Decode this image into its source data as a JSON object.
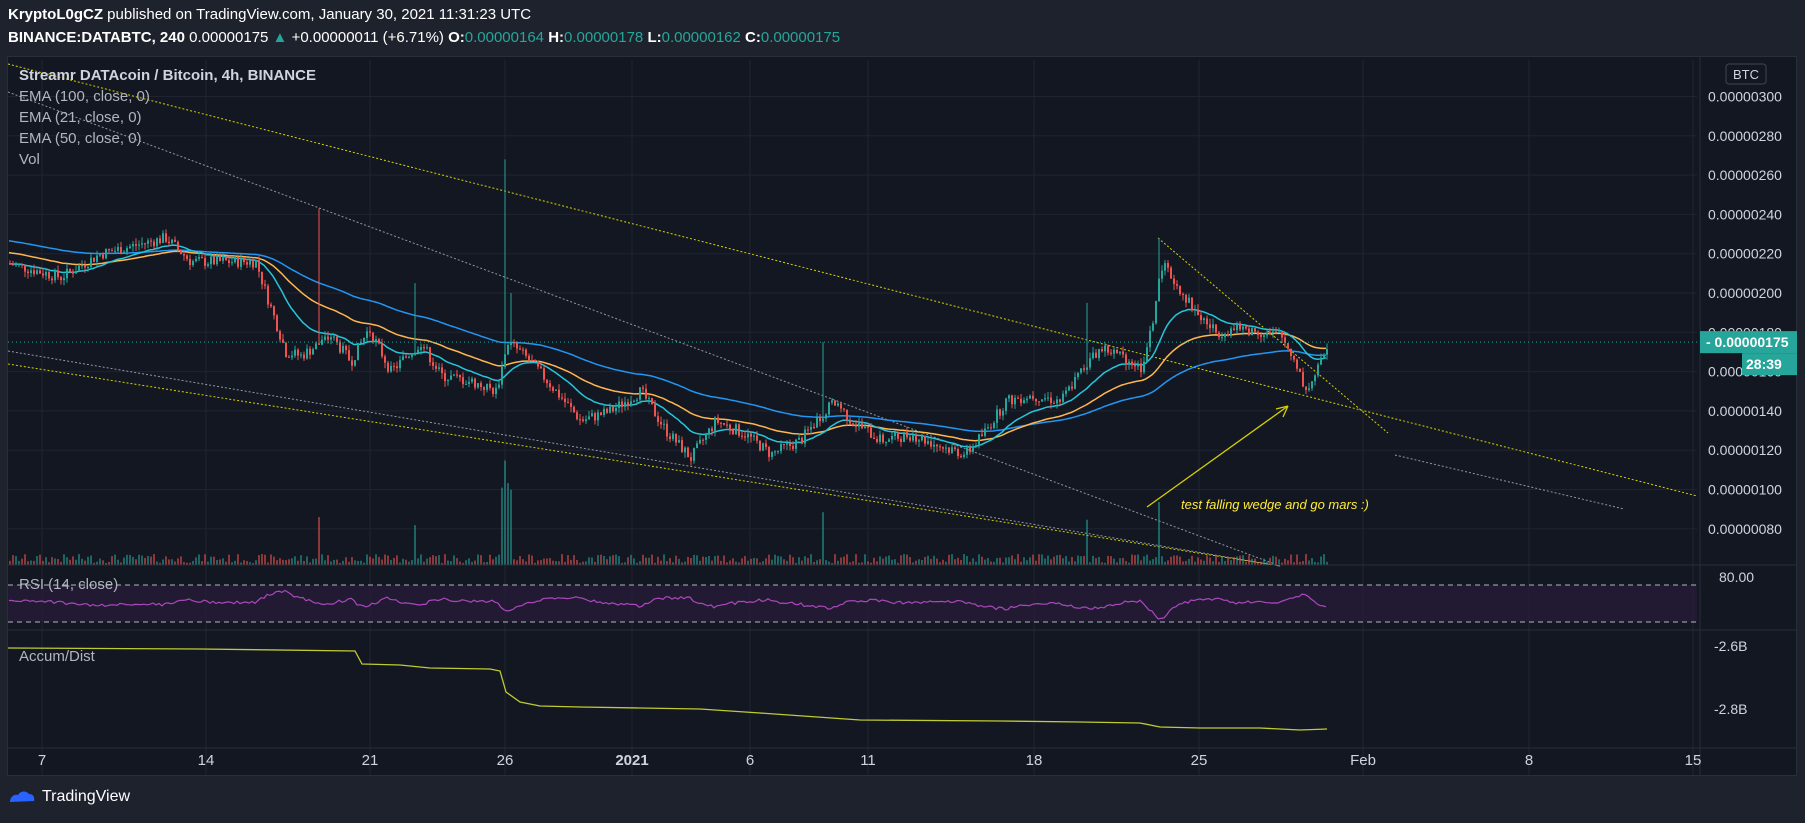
{
  "header": {
    "author": "KryptoL0gCZ",
    "published": "published on TradingView.com, January 30, 2021 11:31:23 UTC",
    "symbol": "BINANCE:DATABTC, 240",
    "last": "0.00000175",
    "change_arrow": "▲",
    "change": "+0.00000011 (+6.71%)",
    "o_label": "O:",
    "o_val": "0.00000164",
    "h_label": "H:",
    "h_val": "0.00000178",
    "l_label": "L:",
    "l_val": "0.00000162",
    "c_label": "C:",
    "c_val": "0.00000175"
  },
  "legend": {
    "title": "Streamr DATAcoin / Bitcoin, 4h, BINANCE",
    "ema100": "EMA (100, close, 0)",
    "ema21": "EMA (21, close, 0)",
    "ema50": "EMA (50, close, 0)",
    "vol": "Vol",
    "rsi": "RSI (14, close)",
    "ad": "Accum/Dist"
  },
  "price_axis": {
    "currency": "BTC",
    "ticks": [
      "0.00000300",
      "0.00000280",
      "0.00000260",
      "0.00000240",
      "0.00000220",
      "0.00000200",
      "0.00000180",
      "0.00000160",
      "0.00000140",
      "0.00000120",
      "0.00000100",
      "0.00000080"
    ],
    "last_price_label": "0.00000175",
    "countdown_label": "28:39"
  },
  "rsi_axis": {
    "ticks": [
      "80.00"
    ]
  },
  "ad_axis": {
    "ticks": [
      "-2.6B",
      "-2.8B"
    ]
  },
  "time_axis": {
    "labels": [
      "7",
      "14",
      "21",
      "26",
      "2021",
      "6",
      "11",
      "18",
      "25",
      "Feb",
      "8",
      "15"
    ]
  },
  "annotation": "test falling wedge and go mars :)",
  "footer": {
    "brand": "TradingView"
  },
  "colors": {
    "up": "#26a69a",
    "down": "#ef5350",
    "ema100": "#2196f3",
    "ema21": "#26c6da",
    "ema50": "#ffb74d",
    "rsi": "#ab47bc",
    "ad": "#c0ca33",
    "trend_yellow": "#d4d000",
    "trend_white": "#b2b5be"
  },
  "chart_data": [
    {
      "type": "candlestick",
      "title": "Streamr DATAcoin / Bitcoin, 4h, BINANCE",
      "ylabel": "BTC",
      "ylim": [
        7e-07,
        3.1e-06
      ],
      "x_labels": [
        "7",
        "14",
        "21",
        "26",
        "2021",
        "6",
        "11",
        "18",
        "25",
        "Feb",
        "8",
        "15"
      ],
      "series_summary": [
        {
          "date": "Dec 7",
          "close": 2.15e-06
        },
        {
          "date": "Dec 12",
          "close": 2.25e-06
        },
        {
          "date": "Dec 16",
          "close": 2.15e-06
        },
        {
          "date": "Dec 18",
          "close": 1.7e-06
        },
        {
          "date": "Dec 21",
          "close": 1.75e-06,
          "high": 2.43e-06
        },
        {
          "date": "Dec 26",
          "close": 1.65e-06,
          "high": 2.68e-06
        },
        {
          "date": "Dec 29",
          "close": 1.4e-06
        },
        {
          "date": "Jan 3",
          "close": 1.15e-06
        },
        {
          "date": "Jan 9",
          "close": 1.4e-06,
          "high": 1.75e-06
        },
        {
          "date": "Jan 15",
          "close": 1.18e-06
        },
        {
          "date": "Jan 20",
          "close": 1.7e-06,
          "high": 1.95e-06
        },
        {
          "date": "Jan 23",
          "close": 2.15e-06,
          "high": 2.28e-06
        },
        {
          "date": "Jan 27",
          "close": 1.8e-06
        },
        {
          "date": "Jan 29",
          "close": 1.5e-06,
          "low": 1.45e-06
        },
        {
          "date": "Jan 30",
          "close": 1.75e-06
        }
      ]
    },
    {
      "type": "line",
      "title": "RSI (14, close)",
      "ylim": [
        20,
        85
      ],
      "reference_lines": [
        70,
        30
      ]
    },
    {
      "type": "line",
      "title": "Accum/Dist",
      "ylim": [
        -2.9,
        -2.5
      ],
      "series_summary": [
        {
          "date": "Dec 7",
          "value": -2.6
        },
        {
          "date": "Dec 21",
          "value": -2.61
        },
        {
          "date": "Dec 21",
          "value": -2.64
        },
        {
          "date": "Dec 26",
          "value": -2.65
        },
        {
          "date": "Dec 27",
          "value": -2.78
        },
        {
          "date": "Jan 15",
          "value": -2.8
        },
        {
          "date": "Jan 30",
          "value": -2.82
        }
      ]
    }
  ]
}
